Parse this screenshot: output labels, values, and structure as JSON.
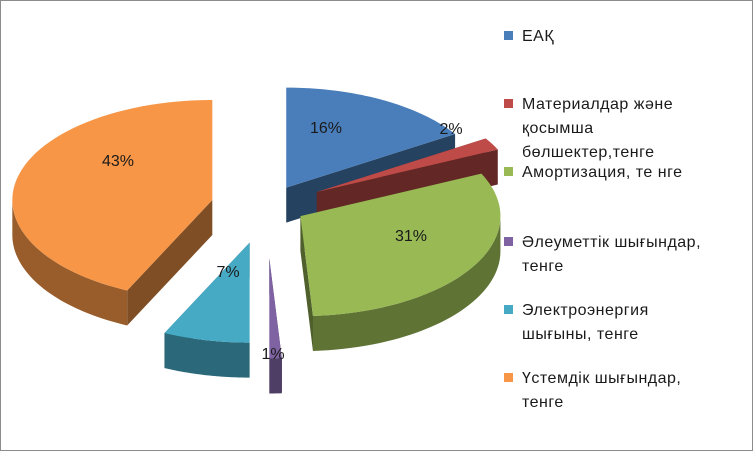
{
  "chart_data": {
    "type": "pie",
    "style": "3d-exploded",
    "title": "",
    "categories": [
      "ЕАҚ",
      "Материалдар және қосымша бөлшектер,тенге",
      "Амортизация, те нге",
      "Әлеуметтік шығындар, тенге",
      "Электроэнергия шығыны, тенге",
      "Үстемдік шығындар, тенге"
    ],
    "values": [
      16,
      2,
      31,
      1,
      7,
      43
    ],
    "labels": [
      "16%",
      "2%",
      "31%",
      "1%",
      "7%",
      "43%"
    ],
    "colors": [
      "#4a7ebb",
      "#be4b48",
      "#98b954",
      "#7e62a1",
      "#46aac5",
      "#f79646"
    ],
    "legend_position": "right"
  }
}
